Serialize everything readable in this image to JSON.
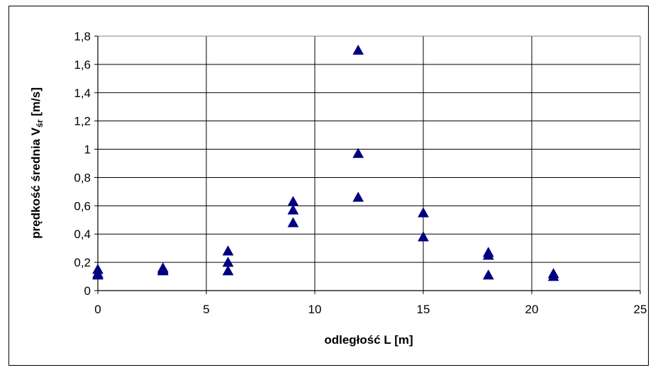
{
  "chart_data": {
    "type": "scatter",
    "title": "",
    "xlabel": "odległość L [m]",
    "ylabel": {
      "main": "prędkość średnia V",
      "subscript": "śr",
      "suffix": " [m/s]"
    },
    "xlim": [
      0,
      25
    ],
    "ylim": [
      0,
      1.8
    ],
    "xticks": [
      0,
      5,
      10,
      15,
      20,
      25
    ],
    "yticks": [
      0,
      0.2,
      0.4,
      0.6,
      0.8,
      1,
      1.2,
      1.4,
      1.6,
      1.8
    ],
    "xtick_labels": [
      "0",
      "5",
      "10",
      "15",
      "20",
      "25"
    ],
    "ytick_labels": [
      "0",
      "0,2",
      "0,4",
      "0,6",
      "0,8",
      "1",
      "1,2",
      "1,4",
      "1,6",
      "1,8"
    ],
    "grid": true,
    "legend": false,
    "marker": "triangle",
    "marker_color": "#000080",
    "series": [
      {
        "x": [
          0,
          0,
          0,
          3,
          3,
          3,
          6,
          6,
          6,
          9,
          9,
          9,
          12,
          12,
          12,
          15,
          15,
          18,
          18,
          18,
          21,
          21
        ],
        "y": [
          0.15,
          0.12,
          0.11,
          0.16,
          0.15,
          0.14,
          0.28,
          0.2,
          0.14,
          0.63,
          0.57,
          0.48,
          1.7,
          0.97,
          0.66,
          0.55,
          0.38,
          0.27,
          0.25,
          0.11,
          0.12,
          0.1
        ]
      }
    ]
  }
}
